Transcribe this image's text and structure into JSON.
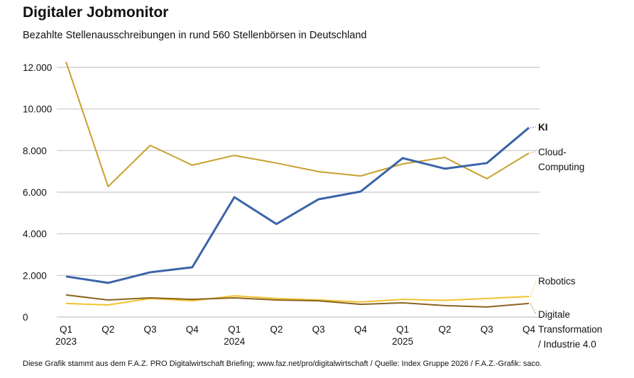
{
  "chart_data": {
    "type": "line",
    "title": "Digitaler Jobmonitor",
    "subtitle": "Bezahlte Stellenausschreibungen in rund 560 Stellenbörsen in Deutschland",
    "xlabel": "",
    "ylabel": "",
    "ylim": [
      0,
      12000
    ],
    "grid": true,
    "x_ticks": [
      [
        "Q1",
        "2023"
      ],
      [
        "Q2",
        ""
      ],
      [
        "Q3",
        ""
      ],
      [
        "Q4",
        ""
      ],
      [
        "Q1",
        "2024"
      ],
      [
        "Q2",
        ""
      ],
      [
        "Q3",
        ""
      ],
      [
        "Q4",
        ""
      ],
      [
        "Q1",
        "2025"
      ],
      [
        "Q2",
        ""
      ],
      [
        "Q3",
        ""
      ],
      [
        "Q4",
        ""
      ]
    ],
    "y_ticks": [
      {
        "value": 0,
        "label": "0"
      },
      {
        "value": 2000,
        "label": "2.000"
      },
      {
        "value": 4000,
        "label": "4.000"
      },
      {
        "value": 6000,
        "label": "6.000"
      },
      {
        "value": 8000,
        "label": "8.000"
      },
      {
        "value": 10000,
        "label": "10.000"
      },
      {
        "value": 12000,
        "label": "12.000"
      }
    ],
    "series": [
      {
        "name": "Cloud-Computing",
        "label_lines": [
          "Cloud-",
          "Computing"
        ],
        "color": "#c9a02f",
        "bold": false,
        "values": [
          12270,
          6270,
          8250,
          7300,
          7770,
          7400,
          6990,
          6780,
          7360,
          7670,
          6650,
          7880
        ]
      },
      {
        "name": "Robotics",
        "label_lines": [
          "Robotics"
        ],
        "color": "#f2c230",
        "bold": false,
        "values": [
          650,
          580,
          890,
          780,
          1020,
          890,
          820,
          720,
          850,
          800,
          890,
          990
        ]
      },
      {
        "name": "Digitale Transformation / Industrie 4.0",
        "label_lines": [
          "Digitale",
          "Transformation",
          "/ Industrie 4.0"
        ],
        "color": "#8a6420",
        "bold": false,
        "values": [
          1060,
          820,
          920,
          850,
          920,
          820,
          780,
          610,
          680,
          550,
          480,
          650
        ]
      },
      {
        "name": "KI",
        "label_lines": [
          "KI"
        ],
        "color": "#3a64a8",
        "bold": true,
        "values": [
          1950,
          1640,
          2150,
          2390,
          5760,
          4470,
          5660,
          6030,
          7640,
          7130,
          7400,
          9100
        ]
      }
    ]
  },
  "footer": "Diese Grafik stammt aus dem F.A.Z. PRO Digitalwirtschaft Briefing; www.faz.net/pro/digitalwirtschaft / Quelle: Index Gruppe 2026  / F.A.Z.-Grafik: saco."
}
